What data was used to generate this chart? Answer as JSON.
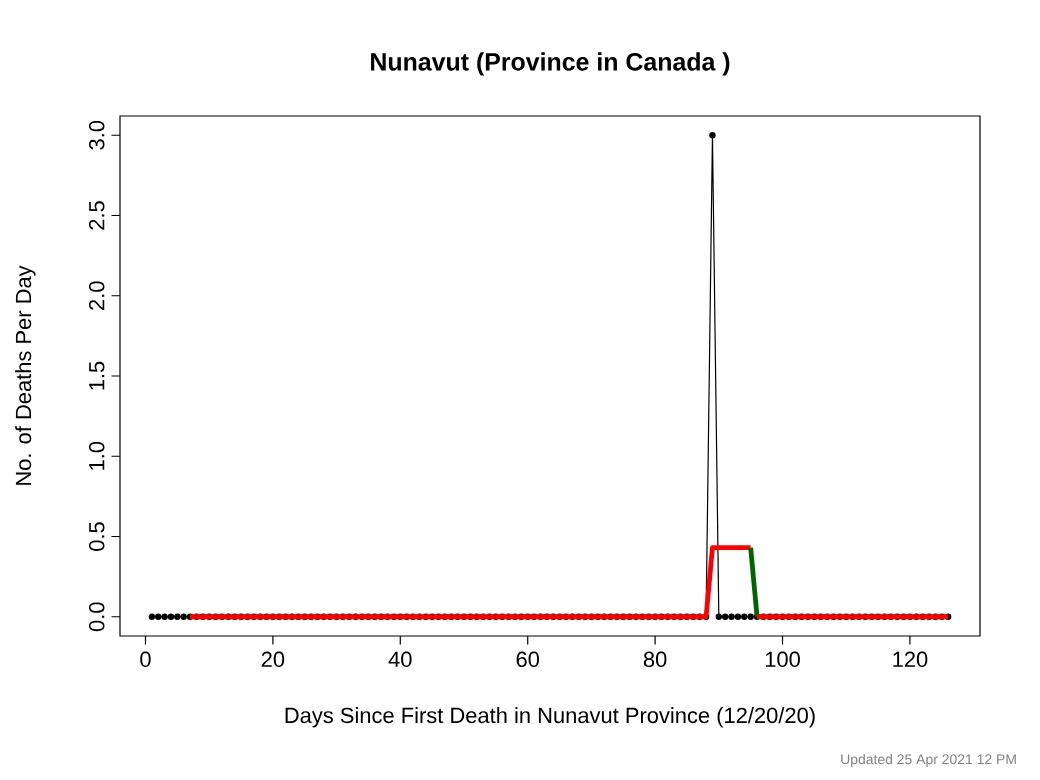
{
  "chart_data": {
    "type": "line",
    "title": "Nunavut  (Province in  Canada )",
    "xlabel": "Days Since First Death in Nunavut Province (12/20/20)",
    "ylabel": "No. of Deaths Per Day",
    "annotations": [
      "Updated  25 Apr 2021 12 PM"
    ],
    "xlim": [
      -4,
      131
    ],
    "ylim": [
      -0.12,
      3.12
    ],
    "xticks": [
      0,
      20,
      40,
      60,
      80,
      100,
      120
    ],
    "yticks": [
      {
        "value": 0,
        "label": "0.0"
      },
      0.5,
      {
        "value": 1,
        "label": "1.0"
      },
      1.5,
      {
        "value": 2,
        "label": "2.0"
      },
      2.5,
      {
        "value": 3,
        "label": "3.0"
      }
    ],
    "x": [
      1,
      2,
      3,
      4,
      5,
      6,
      7,
      8,
      9,
      10,
      11,
      12,
      13,
      14,
      15,
      16,
      17,
      18,
      19,
      20,
      21,
      22,
      23,
      24,
      25,
      26,
      27,
      28,
      29,
      30,
      31,
      32,
      33,
      34,
      35,
      36,
      37,
      38,
      39,
      40,
      41,
      42,
      43,
      44,
      45,
      46,
      47,
      48,
      49,
      50,
      51,
      52,
      53,
      54,
      55,
      56,
      57,
      58,
      59,
      60,
      61,
      62,
      63,
      64,
      65,
      66,
      67,
      68,
      69,
      70,
      71,
      72,
      73,
      74,
      75,
      76,
      77,
      78,
      79,
      80,
      81,
      82,
      83,
      84,
      85,
      86,
      87,
      88,
      89,
      90,
      91,
      92,
      93,
      94,
      95,
      96,
      97,
      98,
      99,
      100,
      101,
      102,
      103,
      104,
      105,
      106,
      107,
      108,
      109,
      110,
      111,
      112,
      113,
      114,
      115,
      116,
      117,
      118,
      119,
      120,
      121,
      122,
      123,
      124,
      125,
      126
    ],
    "series": [
      {
        "color": "#000000",
        "marker": "circle",
        "values": [
          0,
          0,
          0,
          0,
          0,
          0,
          0,
          0,
          0,
          0,
          0,
          0,
          0,
          0,
          0,
          0,
          0,
          0,
          0,
          0,
          0,
          0,
          0,
          0,
          0,
          0,
          0,
          0,
          0,
          0,
          0,
          0,
          0,
          0,
          0,
          0,
          0,
          0,
          0,
          0,
          0,
          0,
          0,
          0,
          0,
          0,
          0,
          0,
          0,
          0,
          0,
          0,
          0,
          0,
          0,
          0,
          0,
          0,
          0,
          0,
          0,
          0,
          0,
          0,
          0,
          0,
          0,
          0,
          0,
          0,
          0,
          0,
          0,
          0,
          0,
          0,
          0,
          0,
          0,
          0,
          0,
          0,
          0,
          0,
          0,
          0,
          0,
          0,
          3,
          0,
          0,
          0,
          0,
          0,
          0,
          0,
          0,
          0,
          0,
          0,
          0,
          0,
          0,
          0,
          0,
          0,
          0,
          0,
          0,
          0,
          0,
          0,
          0,
          0,
          0,
          0,
          0,
          0,
          0,
          0,
          0,
          0,
          0,
          0,
          0,
          0
        ]
      },
      {
        "color": "#ff0000",
        "x": [
          7,
          8,
          9,
          10,
          11,
          12,
          13,
          14,
          15,
          16,
          17,
          18,
          19,
          20,
          21,
          22,
          23,
          24,
          25,
          26,
          27,
          28,
          29,
          30,
          31,
          32,
          33,
          34,
          35,
          36,
          37,
          38,
          39,
          40,
          41,
          42,
          43,
          44,
          45,
          46,
          47,
          48,
          49,
          50,
          51,
          52,
          53,
          54,
          55,
          56,
          57,
          58,
          59,
          60,
          61,
          62,
          63,
          64,
          65,
          66,
          67,
          68,
          69,
          70,
          71,
          72,
          73,
          74,
          75,
          76,
          77,
          78,
          79,
          80,
          81,
          82,
          83,
          84,
          85,
          86,
          87,
          88,
          89,
          90,
          91,
          92,
          93,
          94,
          95
        ],
        "values": [
          0,
          0,
          0,
          0,
          0,
          0,
          0,
          0,
          0,
          0,
          0,
          0,
          0,
          0,
          0,
          0,
          0,
          0,
          0,
          0,
          0,
          0,
          0,
          0,
          0,
          0,
          0,
          0,
          0,
          0,
          0,
          0,
          0,
          0,
          0,
          0,
          0,
          0,
          0,
          0,
          0,
          0,
          0,
          0,
          0,
          0,
          0,
          0,
          0,
          0,
          0,
          0,
          0,
          0,
          0,
          0,
          0,
          0,
          0,
          0,
          0,
          0,
          0,
          0,
          0,
          0,
          0,
          0,
          0,
          0,
          0,
          0,
          0,
          0,
          0,
          0,
          0,
          0,
          0,
          0,
          0,
          0,
          0.43,
          0.43,
          0.43,
          0.43,
          0.43,
          0.43,
          0.43
        ]
      },
      {
        "color": "#006400",
        "x": [
          95,
          96
        ],
        "values": [
          0.43,
          0
        ]
      },
      {
        "color": "#ff0000",
        "x": [
          96,
          97,
          98,
          99,
          100,
          101,
          102,
          103,
          104,
          105,
          106,
          107,
          108,
          109,
          110,
          111,
          112,
          113,
          114,
          115,
          116,
          117,
          118,
          119,
          120,
          121,
          122,
          123,
          124,
          125,
          126
        ],
        "values": [
          0,
          0,
          0,
          0,
          0,
          0,
          0,
          0,
          0,
          0,
          0,
          0,
          0,
          0,
          0,
          0,
          0,
          0,
          0,
          0,
          0,
          0,
          0,
          0,
          0,
          0,
          0,
          0,
          0,
          0,
          0
        ]
      }
    ]
  }
}
